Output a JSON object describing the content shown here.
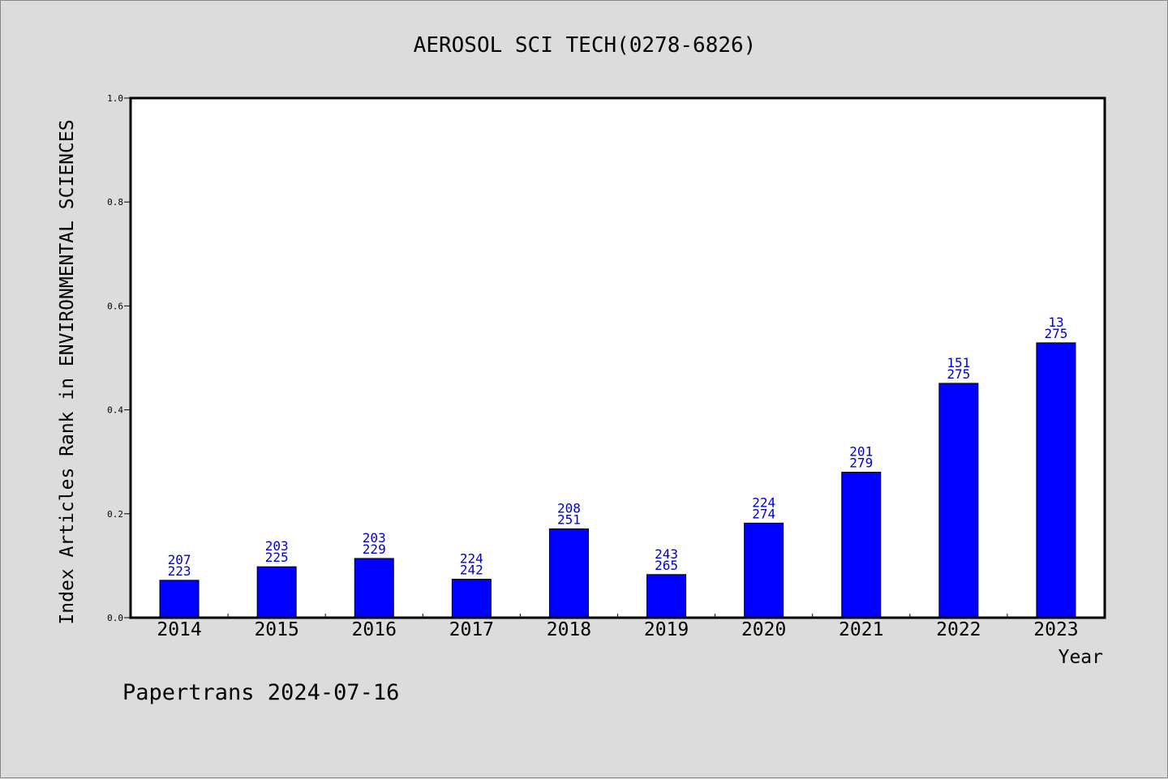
{
  "chart_data": {
    "type": "bar",
    "title": "AEROSOL SCI TECH(0278-6826)",
    "xlabel": "Year",
    "ylabel": "Index Articles Rank in ENVIRONMENTAL SCIENCES",
    "ylim": [
      0,
      1.0
    ],
    "yticks": [
      "0.0",
      "0.2",
      "0.4",
      "0.6",
      "0.8",
      "1.0"
    ],
    "categories": [
      "2014",
      "2015",
      "2016",
      "2017",
      "2018",
      "2019",
      "2020",
      "2021",
      "2022",
      "2023"
    ],
    "values": [
      0.072,
      0.098,
      0.114,
      0.074,
      0.171,
      0.083,
      0.182,
      0.28,
      0.451,
      0.529
    ],
    "rank_labels": [
      "207",
      "203",
      "203",
      "224",
      "208",
      "243",
      "224",
      "201",
      "151",
      "13"
    ],
    "total_labels": [
      "223",
      "225",
      "229",
      "242",
      "251",
      "265",
      "274",
      "279",
      "275",
      "275"
    ],
    "grid": false,
    "colors": {
      "bar": "#0000ff",
      "label": "#0000cc",
      "background": "#dcdcdc",
      "plot": "#ffffff"
    }
  },
  "footer": "Papertrans 2024-07-16"
}
